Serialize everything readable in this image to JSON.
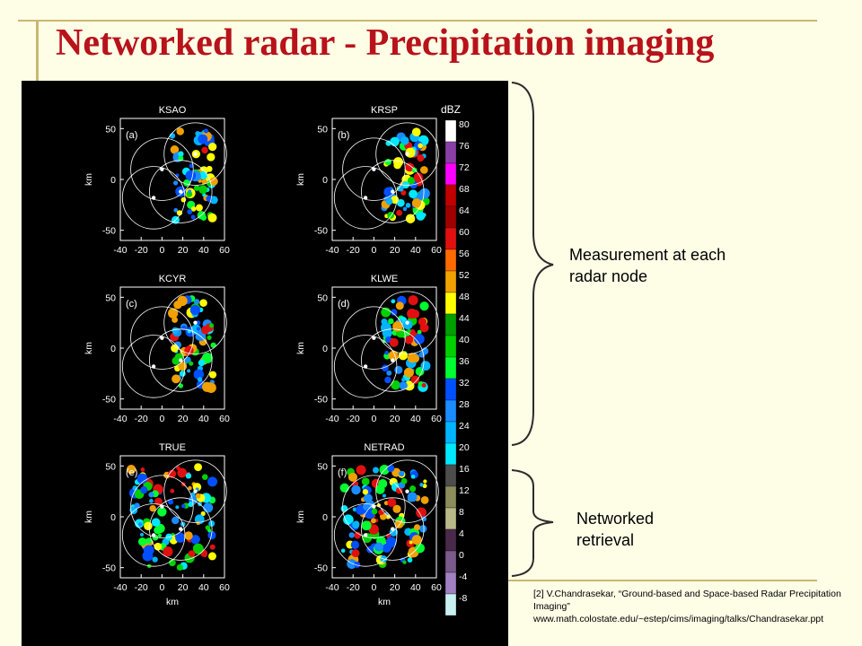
{
  "slide": {
    "title": "Networked radar - Precipitation imaging",
    "label_measurement": "Measurement at each radar node",
    "label_retrieval": "Networked retrieval",
    "citation": "[2] V.Chandrasekar, “Ground-based and Space-based Radar Precipitation Imaging” www.math.colostate.edu/~estep/cims/imaging/talks/Chandrasekar.ppt"
  },
  "figure": {
    "panels": [
      {
        "name": "KSAO",
        "tag": "(a)"
      },
      {
        "name": "KRSP",
        "tag": "(b)"
      },
      {
        "name": "KCYR",
        "tag": "(c)"
      },
      {
        "name": "KLWE",
        "tag": "(d)"
      },
      {
        "name": "TRUE",
        "tag": "(e)"
      },
      {
        "name": "NETRAD",
        "tag": "(f)"
      }
    ],
    "x_ticks": [
      "-40",
      "-20",
      "0",
      "20",
      "40",
      "60"
    ],
    "y_ticks": [
      "50",
      "0",
      "-50"
    ],
    "axis_label": "km",
    "colorbar_title": "dBZ",
    "colorbar_ticks": [
      "80",
      "76",
      "72",
      "68",
      "64",
      "60",
      "56",
      "52",
      "48",
      "44",
      "40",
      "36",
      "32",
      "28",
      "24",
      "20",
      "16",
      "12",
      "8",
      "4",
      "0",
      "-4",
      "-8"
    ],
    "colorbar_colors": [
      "#ffffff",
      "#8a3fa8",
      "#ff00ff",
      "#c00000",
      "#a00000",
      "#e01010",
      "#ff6a00",
      "#f0a000",
      "#ffff00",
      "#00a000",
      "#00d000",
      "#00ff30",
      "#0050ff",
      "#1a8cff",
      "#00b4ff",
      "#00e8ff",
      "#4d4d4d",
      "#8c8c5c",
      "#b8b888",
      "#4a2a4a",
      "#7a5a8a",
      "#a080c0",
      "#c8f0f0"
    ]
  }
}
